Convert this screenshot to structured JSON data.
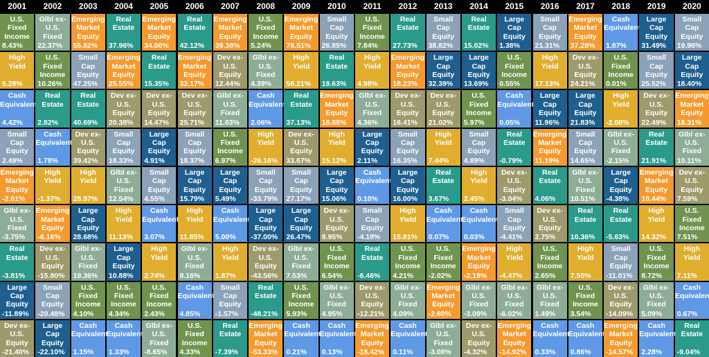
{
  "chart_data": {
    "type": "table",
    "title": "",
    "years": [
      "2001",
      "2002",
      "2003",
      "2004",
      "2005",
      "2006",
      "2007",
      "2008",
      "2009",
      "2010",
      "2011",
      "2012",
      "2013",
      "2014",
      "2015",
      "2016",
      "2017",
      "2018",
      "2019",
      "2020"
    ],
    "asset_colors": {
      "U.S.\nFixed\nIncome": "#70944f",
      "Glbl ex-\nU.S.\nFixed": "#8ead96",
      "Emerging\nMarket\nEquity": "#f59a2e",
      "Real\nEstate": "#2a9a8a",
      "High Yield": "#e0ad2e",
      "Cash\nEquivalent": "#5f99e5",
      "Small Cap\nEquity": "#8ba2b8",
      "Dev ex-\nU.S.\nEquity": "#9d9a6c",
      "Large\nCap\nEquity": "#1f5f8f"
    },
    "columns": [
      {
        "year": "2001",
        "cells": [
          {
            "asset": "U.S.\nFixed\nIncome",
            "value": "8.43%"
          },
          {
            "asset": "High Yield",
            "value": "5.28%"
          },
          {
            "asset": "Cash\nEquivalent",
            "value": "4.42%"
          },
          {
            "asset": "Small Cap\nEquity",
            "value": "2.49%"
          },
          {
            "asset": "Emerging\nMarket\nEquity",
            "value": "-2.61%"
          },
          {
            "asset": "Glbl ex-\nU.S.\nFixed",
            "value": "-3.75%"
          },
          {
            "asset": "Real\nEstate",
            "value": "-3.81%"
          },
          {
            "asset": "Large\nCap\nEquity",
            "value": "-11.89%"
          },
          {
            "asset": "Dev ex-\nU.S.\nEquity",
            "value": "-21.40%"
          }
        ]
      },
      {
        "year": "2002",
        "cells": [
          {
            "asset": "Glbl ex-\nU.S.\nFixed",
            "value": "22.37%"
          },
          {
            "asset": "U.S.\nFixed\nIncome",
            "value": "10.26%"
          },
          {
            "asset": "Real\nEstate",
            "value": "2.82%"
          },
          {
            "asset": "Cash\nEquivalent",
            "value": "1.78%"
          },
          {
            "asset": "High Yield",
            "value": "-1.37%"
          },
          {
            "asset": "Emerging\nMarket\nEquity",
            "value": "-6.16%"
          },
          {
            "asset": "Dev ex-\nU.S.\nEquity",
            "value": "-15.80%"
          },
          {
            "asset": "Small Cap\nEquity",
            "value": "-20.48%"
          },
          {
            "asset": "Large\nCap\nEquity",
            "value": "-22.10%"
          }
        ]
      },
      {
        "year": "2003",
        "cells": [
          {
            "asset": "Emerging\nMarket\nEquity",
            "value": "55.82%"
          },
          {
            "asset": "Small Cap\nEquity",
            "value": "47.25%"
          },
          {
            "asset": "Real\nEstate",
            "value": "40.69%"
          },
          {
            "asset": "Dev ex-\nU.S.\nEquity",
            "value": "39.42%"
          },
          {
            "asset": "High Yield",
            "value": "28.97%"
          },
          {
            "asset": "Large\nCap\nEquity",
            "value": "28.68%"
          },
          {
            "asset": "Glbl ex-\nU.S.\nFixed",
            "value": "19.36%"
          },
          {
            "asset": "U.S.\nFixed\nIncome",
            "value": "4.10%"
          },
          {
            "asset": "Cash\nEquivalent",
            "value": "1.15%"
          }
        ]
      },
      {
        "year": "2004",
        "cells": [
          {
            "asset": "Real\nEstate",
            "value": "37.96%"
          },
          {
            "asset": "Emerging\nMarket\nEquity",
            "value": "25.55%"
          },
          {
            "asset": "Dev ex-\nU.S.\nEquity",
            "value": "20.38%"
          },
          {
            "asset": "Small Cap\nEquity",
            "value": "18.33%"
          },
          {
            "asset": "Glbl ex-\nU.S.\nFixed",
            "value": "12.54%"
          },
          {
            "asset": "High Yield",
            "value": "11.13%"
          },
          {
            "asset": "Large\nCap\nEquity",
            "value": "10.88%"
          },
          {
            "asset": "U.S.\nFixed\nIncome",
            "value": "4.34%"
          },
          {
            "asset": "Cash\nEquivalent",
            "value": "1.33%"
          }
        ]
      },
      {
        "year": "2005",
        "cells": [
          {
            "asset": "Emerging\nMarket\nEquity",
            "value": "34.00%"
          },
          {
            "asset": "Real\nEstate",
            "value": "15.35%"
          },
          {
            "asset": "Dev ex-\nU.S.\nEquity",
            "value": "14.47%"
          },
          {
            "asset": "Large\nCap\nEquity",
            "value": "4.91%"
          },
          {
            "asset": "Small Cap\nEquity",
            "value": "4.55%"
          },
          {
            "asset": "Cash\nEquivalent",
            "value": "3.07%"
          },
          {
            "asset": "High Yield",
            "value": "2.74%"
          },
          {
            "asset": "U.S.\nFixed\nIncome",
            "value": "2.43%"
          },
          {
            "asset": "Glbl ex-\nU.S.\nFixed",
            "value": "-8.65%"
          }
        ]
      },
      {
        "year": "2006",
        "cells": [
          {
            "asset": "Real\nEstate",
            "value": "42.12%"
          },
          {
            "asset": "Emerging\nMarket\nEquity",
            "value": "32.17%"
          },
          {
            "asset": "Dev ex-\nU.S.\nEquity",
            "value": "25.71%"
          },
          {
            "asset": "Small Cap\nEquity",
            "value": "18.37%"
          },
          {
            "asset": "Large\nCap\nEquity",
            "value": "15.79%"
          },
          {
            "asset": "High Yield",
            "value": "11.85%"
          },
          {
            "asset": "Glbl ex-\nU.S.\nFixed",
            "value": "8.16%"
          },
          {
            "asset": "Cash\nEquivalent",
            "value": "4.85%"
          },
          {
            "asset": "U.S.\nFixed\nIncome",
            "value": "4.33%"
          }
        ]
      },
      {
        "year": "2007",
        "cells": [
          {
            "asset": "Emerging\nMarket\nEquity",
            "value": "39.38%"
          },
          {
            "asset": "Dev ex-\nU.S.\nEquity",
            "value": "12.44%"
          },
          {
            "asset": "Glbl ex-\nU.S.\nFixed",
            "value": "11.03%"
          },
          {
            "asset": "U.S.\nFixed\nIncome",
            "value": "6.97%"
          },
          {
            "asset": "Large\nCap\nEquity",
            "value": "5.49%"
          },
          {
            "asset": "Cash\nEquivalent",
            "value": "5.00%"
          },
          {
            "asset": "High Yield",
            "value": "1.87%"
          },
          {
            "asset": "Small Cap\nEquity",
            "value": "-1.57%"
          },
          {
            "asset": "Real\nEstate",
            "value": "-7.39%"
          }
        ]
      },
      {
        "year": "2008",
        "cells": [
          {
            "asset": "U.S.\nFixed\nIncome",
            "value": "5.24%"
          },
          {
            "asset": "Glbl ex-\nU.S.\nFixed",
            "value": "4.39%"
          },
          {
            "asset": "Cash\nEquivalent",
            "value": "2.06%"
          },
          {
            "asset": "High Yield",
            "value": "-26.16%"
          },
          {
            "asset": "Small Cap\nEquity",
            "value": "-33.79%"
          },
          {
            "asset": "Large\nCap\nEquity",
            "value": "-37.00%"
          },
          {
            "asset": "Dev ex-\nU.S.\nEquity",
            "value": "-43.56%"
          },
          {
            "asset": "Real\nEstate",
            "value": "-48.21%"
          },
          {
            "asset": "Emerging\nMarket\nEquity",
            "value": "-53.33%"
          }
        ]
      },
      {
        "year": "2009",
        "cells": [
          {
            "asset": "Emerging\nMarket\nEquity",
            "value": "78.51%"
          },
          {
            "asset": "High Yield",
            "value": "58.21%"
          },
          {
            "asset": "Real\nEstate",
            "value": "37.13%"
          },
          {
            "asset": "Dev ex-\nU.S.\nEquity",
            "value": "33.67%"
          },
          {
            "asset": "Small Cap\nEquity",
            "value": "27.17%"
          },
          {
            "asset": "Large\nCap\nEquity",
            "value": "26.47%"
          },
          {
            "asset": "Glbl ex-\nU.S.\nFixed",
            "value": "7.53%"
          },
          {
            "asset": "U.S.\nFixed\nIncome",
            "value": "5.93%"
          },
          {
            "asset": "Cash\nEquivalent",
            "value": "0.21%"
          }
        ]
      },
      {
        "year": "2010",
        "cells": [
          {
            "asset": "Small Cap\nEquity",
            "value": "26.85%"
          },
          {
            "asset": "Real\nEstate",
            "value": "19.63%"
          },
          {
            "asset": "Emerging\nMarket\nEquity",
            "value": "18.88%"
          },
          {
            "asset": "High Yield",
            "value": "15.12%"
          },
          {
            "asset": "Large\nCap\nEquity",
            "value": "15.06%"
          },
          {
            "asset": "Dev ex-\nU.S.\nEquity",
            "value": "8.95%"
          },
          {
            "asset": "U.S.\nFixed\nIncome",
            "value": "6.54%"
          },
          {
            "asset": "Glbl ex-\nU.S.\nFixed",
            "value": "4.95%"
          },
          {
            "asset": "Cash\nEquivalent",
            "value": "0.13%"
          }
        ]
      },
      {
        "year": "2011",
        "cells": [
          {
            "asset": "U.S.\nFixed\nIncome",
            "value": "7.84%"
          },
          {
            "asset": "High Yield",
            "value": "4.98%"
          },
          {
            "asset": "Glbl ex-\nU.S.\nFixed",
            "value": "4.36%"
          },
          {
            "asset": "Large\nCap\nEquity",
            "value": "2.11%"
          },
          {
            "asset": "Cash\nEquivalent",
            "value": "0.10%"
          },
          {
            "asset": "Small Cap\nEquity",
            "value": "-4.18%"
          },
          {
            "asset": "Real\nEstate",
            "value": "-6.46%"
          },
          {
            "asset": "Dev ex-\nU.S.\nEquity",
            "value": "-12.21%"
          },
          {
            "asset": "Emerging\nMarket\nEquity",
            "value": "-18.42%"
          }
        ]
      },
      {
        "year": "2012",
        "cells": [
          {
            "asset": "Real\nEstate",
            "value": "27.73%"
          },
          {
            "asset": "Emerging\nMarket\nEquity",
            "value": "18.23%"
          },
          {
            "asset": "Dev ex-\nU.S.\nEquity",
            "value": "16.41%"
          },
          {
            "asset": "Small Cap\nEquity",
            "value": "16.35%"
          },
          {
            "asset": "Large\nCap\nEquity",
            "value": "16.00%"
          },
          {
            "asset": "High Yield",
            "value": "15.81%"
          },
          {
            "asset": "U.S.\nFixed\nIncome",
            "value": "4.21%"
          },
          {
            "asset": "Glbl ex-\nU.S.\nFixed",
            "value": "4.09%"
          },
          {
            "asset": "Cash\nEquivalent",
            "value": "0.11%"
          }
        ]
      },
      {
        "year": "2013",
        "cells": [
          {
            "asset": "Small Cap\nEquity",
            "value": "38.82%"
          },
          {
            "asset": "Large\nCap\nEquity",
            "value": "32.39%"
          },
          {
            "asset": "Dev ex-\nU.S.\nEquity",
            "value": "21.02%"
          },
          {
            "asset": "High Yield",
            "value": "7.44%"
          },
          {
            "asset": "Real\nEstate",
            "value": "3.67%"
          },
          {
            "asset": "Cash\nEquivalent",
            "value": "0.07%"
          },
          {
            "asset": "U.S.\nFixed\nIncome",
            "value": "-2.02%"
          },
          {
            "asset": "Emerging\nMarket\nEquity",
            "value": "-2.60%"
          },
          {
            "asset": "Glbl ex-\nU.S.\nFixed",
            "value": "-3.08%"
          }
        ]
      },
      {
        "year": "2014",
        "cells": [
          {
            "asset": "Real\nEstate",
            "value": "15.02%"
          },
          {
            "asset": "Large\nCap\nEquity",
            "value": "13.69%"
          },
          {
            "asset": "U.S.\nFixed\nIncome",
            "value": "5.97%"
          },
          {
            "asset": "Small Cap\nEquity",
            "value": "4.89%"
          },
          {
            "asset": "High Yield",
            "value": "2.45%"
          },
          {
            "asset": "Cash\nEquivalent",
            "value": "0.03%"
          },
          {
            "asset": "Emerging\nMarket\nEquity",
            "value": "-2.19%"
          },
          {
            "asset": "Glbl ex-\nU.S.\nFixed",
            "value": "-3.09%"
          },
          {
            "asset": "Dev ex-\nU.S.\nEquity",
            "value": "-4.32%"
          }
        ]
      },
      {
        "year": "2015",
        "cells": [
          {
            "asset": "Large\nCap\nEquity",
            "value": "1.38%"
          },
          {
            "asset": "U.S.\nFixed\nIncome",
            "value": "0.55%"
          },
          {
            "asset": "Cash\nEquivalent",
            "value": "0.05%"
          },
          {
            "asset": "Real\nEstate",
            "value": "-0.79%"
          },
          {
            "asset": "Dev ex-\nU.S.\nEquity",
            "value": "-3.04%"
          },
          {
            "asset": "Small Cap\nEquity",
            "value": "-4.41%"
          },
          {
            "asset": "High Yield",
            "value": "-4.47%"
          },
          {
            "asset": "Glbl ex-\nU.S.\nFixed",
            "value": "-6.02%"
          },
          {
            "asset": "Emerging\nMarket\nEquity",
            "value": "-14.92%"
          }
        ]
      },
      {
        "year": "2016",
        "cells": [
          {
            "asset": "Small Cap\nEquity",
            "value": "21.31%"
          },
          {
            "asset": "High Yield",
            "value": "17.13%"
          },
          {
            "asset": "Large\nCap\nEquity",
            "value": "11.96%"
          },
          {
            "asset": "Emerging\nMarket\nEquity",
            "value": "11.19%"
          },
          {
            "asset": "Real\nEstate",
            "value": "4.06%"
          },
          {
            "asset": "Dev ex-\nU.S.\nEquity",
            "value": "2.75%"
          },
          {
            "asset": "U.S.\nFixed\nIncome",
            "value": "2.65%"
          },
          {
            "asset": "Glbl ex-\nU.S.\nFixed",
            "value": "1.49%"
          },
          {
            "asset": "Cash\nEquivalent",
            "value": "0.33%"
          }
        ]
      },
      {
        "year": "2017",
        "cells": [
          {
            "asset": "Emerging\nMarket\nEquity",
            "value": "37.28%"
          },
          {
            "asset": "Dev ex-\nU.S.\nEquity",
            "value": "24.21%"
          },
          {
            "asset": "Large\nCap\nEquity",
            "value": "21.83%"
          },
          {
            "asset": "Small Cap\nEquity",
            "value": "14.65%"
          },
          {
            "asset": "Glbl ex-\nU.S.\nFixed",
            "value": "10.51%"
          },
          {
            "asset": "Real\nEstate",
            "value": "10.36%"
          },
          {
            "asset": "High Yield",
            "value": "7.50%"
          },
          {
            "asset": "U.S.\nFixed\nIncome",
            "value": "3.54%"
          },
          {
            "asset": "Cash\nEquivalent",
            "value": "0.86%"
          }
        ]
      },
      {
        "year": "2018",
        "cells": [
          {
            "asset": "Cash\nEquivalent",
            "value": "1.87%"
          },
          {
            "asset": "U.S.\nFixed\nIncome",
            "value": "0.01%"
          },
          {
            "asset": "High Yield",
            "value": "-2.08%"
          },
          {
            "asset": "Glbl ex-\nU.S.\nFixed",
            "value": "-2.15%"
          },
          {
            "asset": "Large\nCap\nEquity",
            "value": "-4.38%"
          },
          {
            "asset": "Real\nEstate",
            "value": "-5.63%"
          },
          {
            "asset": "Small Cap\nEquity",
            "value": "-11.01%"
          },
          {
            "asset": "Dev ex-\nU.S.\nEquity",
            "value": "-14.09%"
          },
          {
            "asset": "Emerging\nMarket\nEquity",
            "value": "-14.57%"
          }
        ]
      },
      {
        "year": "2019",
        "cells": [
          {
            "asset": "Large\nCap\nEquity",
            "value": "31.49%"
          },
          {
            "asset": "Small Cap\nEquity",
            "value": "25.52%"
          },
          {
            "asset": "Dev ex-\nU.S.\nEquity",
            "value": "22.49%"
          },
          {
            "asset": "Real\nEstate",
            "value": "21.91%"
          },
          {
            "asset": "Emerging\nMarket\nEquity",
            "value": "18.44%"
          },
          {
            "asset": "High Yield",
            "value": "14.32%"
          },
          {
            "asset": "U.S.\nFixed\nIncome",
            "value": "8.72%"
          },
          {
            "asset": "Glbl ex-\nU.S.\nFixed",
            "value": "5.09%"
          },
          {
            "asset": "Cash\nEquivalent",
            "value": "2.28%"
          }
        ]
      },
      {
        "year": "2020",
        "cells": [
          {
            "asset": "Small Cap\nEquity",
            "value": "19.96%"
          },
          {
            "asset": "Large\nCap\nEquity",
            "value": "18.40%"
          },
          {
            "asset": "Emerging\nMarket\nEquity",
            "value": "18.31%"
          },
          {
            "asset": "Glbl ex-\nU.S.\nFixed",
            "value": "10.11%"
          },
          {
            "asset": "Dev ex-\nU.S.\nEquity",
            "value": "7.59%"
          },
          {
            "asset": "U.S.\nFixed\nIncome",
            "value": "7.51%"
          },
          {
            "asset": "High Yield",
            "value": "7.11%"
          },
          {
            "asset": "Cash\nEquivalent",
            "value": "0.67%"
          },
          {
            "asset": "Real\nEstate",
            "value": "-9.04%"
          }
        ]
      }
    ]
  }
}
